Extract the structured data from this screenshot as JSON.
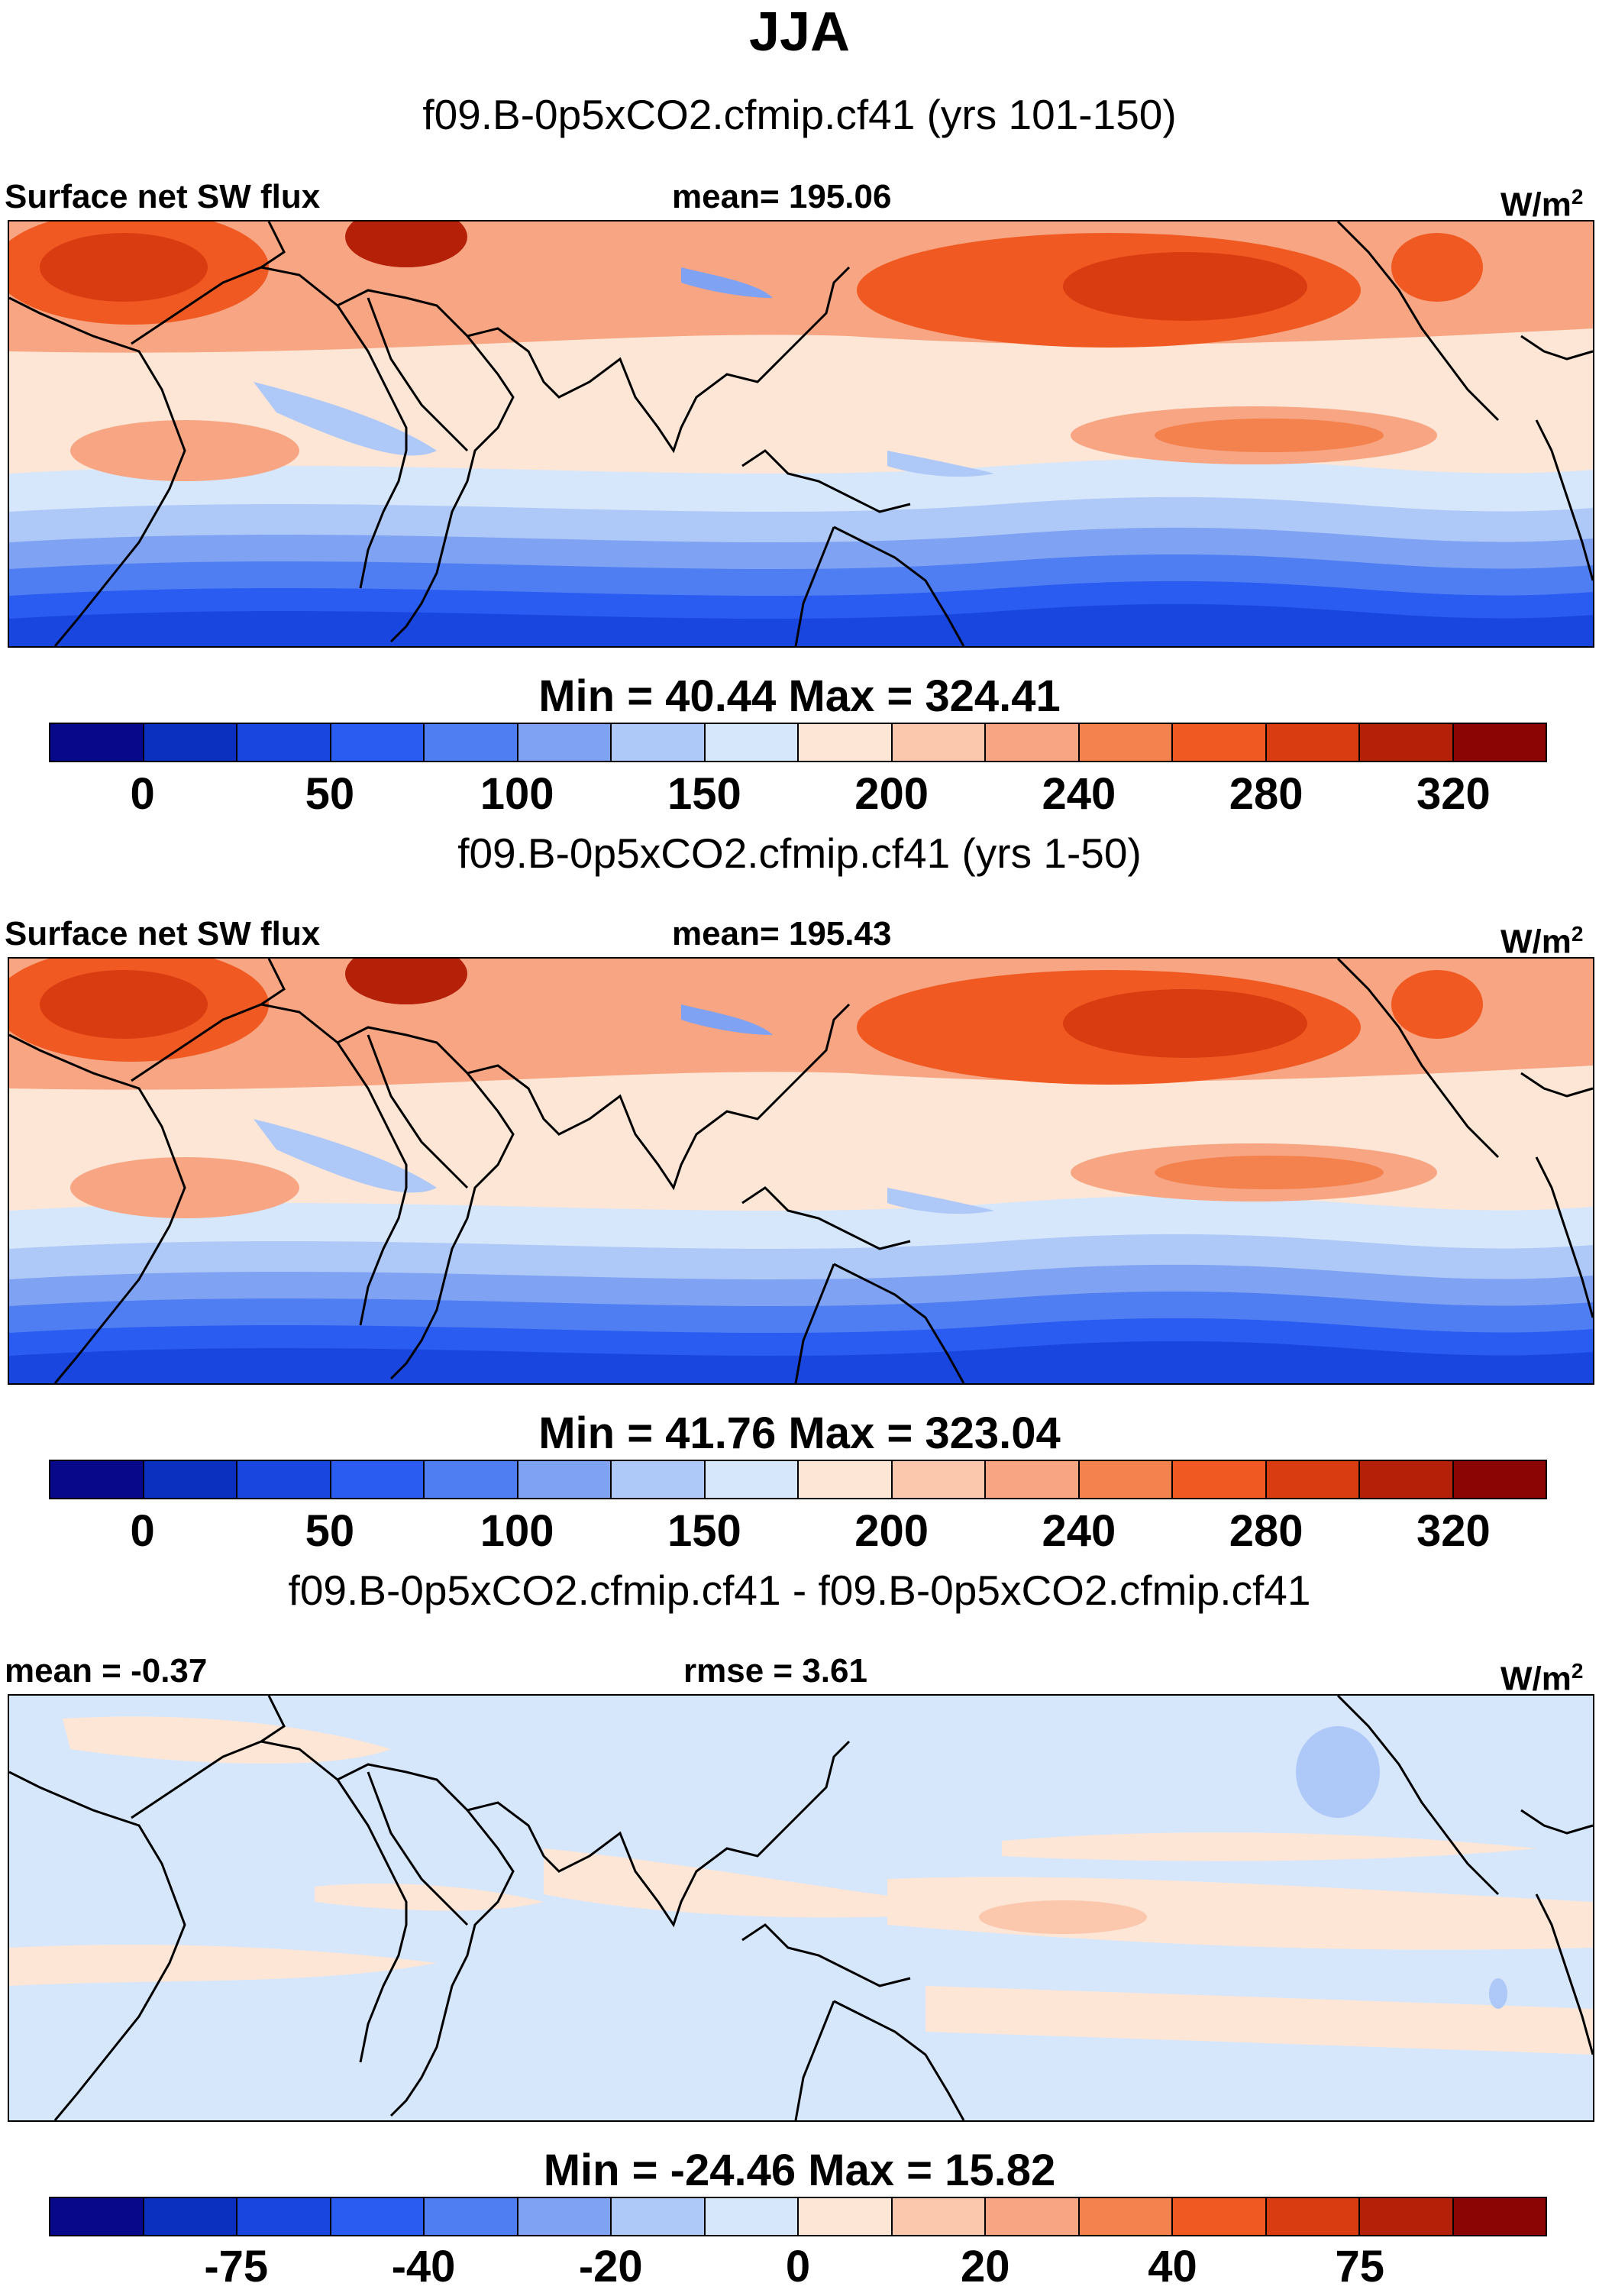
{
  "title": "JJA",
  "panels": [
    {
      "subtitle": "f09.B-0p5xCO2.cfmip.cf41 (yrs 101-150)",
      "left_label": "Surface net SW flux",
      "center_label": "mean= 195.06",
      "units_base": "W/m",
      "units_exp": "2",
      "minmax": "Min =  40.44 Max = 324.41",
      "ticks": [
        "0",
        "50",
        "100",
        "150",
        "200",
        "240",
        "280",
        "320"
      ],
      "kind": "abs"
    },
    {
      "subtitle": "f09.B-0p5xCO2.cfmip.cf41 (yrs 1-50)",
      "left_label": "Surface net SW flux",
      "center_label": "mean= 195.43",
      "units_base": "W/m",
      "units_exp": "2",
      "minmax": "Min =  41.76 Max = 323.04",
      "ticks": [
        "0",
        "50",
        "100",
        "150",
        "200",
        "240",
        "280",
        "320"
      ],
      "kind": "abs"
    },
    {
      "subtitle": "f09.B-0p5xCO2.cfmip.cf41 - f09.B-0p5xCO2.cfmip.cf41",
      "left_label": "mean =  -0.37",
      "center_label": "rmse =   3.61",
      "units_base": "W/m",
      "units_exp": "2",
      "minmax": "Min = -24.46 Max =  15.82",
      "ticks": [
        "-75",
        "-40",
        "-20",
        "0",
        "20",
        "40",
        "75"
      ],
      "kind": "diff"
    }
  ],
  "colorbar": [
    "#08088a",
    "#0b2fbf",
    "#1a46e0",
    "#2a5cf2",
    "#4f7ef2",
    "#7fa2f2",
    "#aec8f7",
    "#d6e6fb",
    "#fde6d6",
    "#fbc7ad",
    "#f7a582",
    "#f4824f",
    "#f05a22",
    "#da3c12",
    "#b52009",
    "#8c0505"
  ]
}
